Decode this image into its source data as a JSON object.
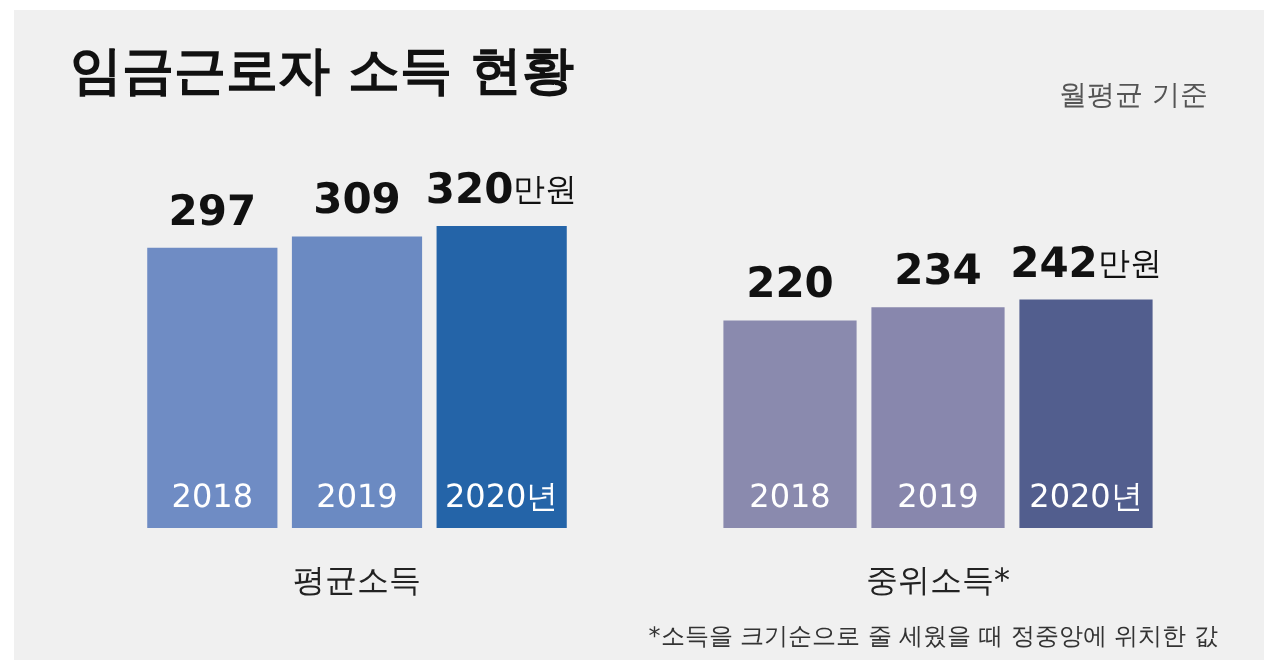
{
  "chart_data": [
    {
      "type": "bar",
      "title": "임금근로자 소득 현황",
      "categories": [
        "2018",
        "2019",
        "2020년"
      ],
      "values": [
        297,
        309,
        320
      ],
      "colors": [
        "#6f8cc4",
        "#6b8ac2",
        "#2464a8"
      ],
      "value_labels": [
        "297",
        "309",
        "320만원"
      ],
      "xlabel": "평균소득",
      "tick_labels": "x"
    },
    {
      "type": "bar",
      "subtitle": "월평균 기준",
      "categories": [
        "2018",
        "2019",
        "2020년"
      ],
      "values": [
        220,
        234,
        242
      ],
      "colors": [
        "#8a8aae",
        "#8887ad",
        "#525e8e"
      ],
      "value_labels": [
        "220",
        "234",
        "242만원"
      ],
      "xlabel": "중위소득*",
      "tick_labels": "x",
      "annotations": [
        "*소득을 크기순으로 줄 세웠을 때 정중앙에 위치한 값"
      ]
    }
  ]
}
